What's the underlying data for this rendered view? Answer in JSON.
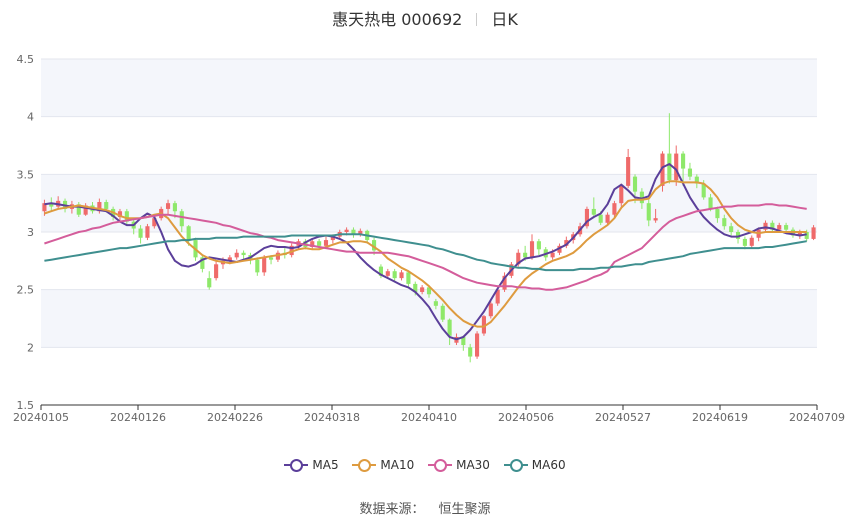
{
  "title": {
    "name": "惠天热电 000692",
    "period": "日K"
  },
  "source": {
    "label": "数据来源：",
    "value": "恒生聚源"
  },
  "chart_data": {
    "type": "candlestick",
    "ylim": [
      1.5,
      4.5
    ],
    "yticks": [
      "1.5",
      "2",
      "2.5",
      "3",
      "3.5",
      "4",
      "4.5"
    ],
    "xticks": [
      "20240105",
      "20240126",
      "20240226",
      "20240318",
      "20240410",
      "20240506",
      "20240527",
      "20240619",
      "20240709"
    ],
    "up_color": "#ef6a6a",
    "down_color": "#8ee86a",
    "ohlc": [
      [
        3.18,
        3.25,
        3.28,
        3.14
      ],
      [
        3.25,
        3.22,
        3.3,
        3.18
      ],
      [
        3.22,
        3.27,
        3.31,
        3.2
      ],
      [
        3.27,
        3.2,
        3.29,
        3.17
      ],
      [
        3.2,
        3.24,
        3.27,
        3.16
      ],
      [
        3.24,
        3.15,
        3.26,
        3.13
      ],
      [
        3.15,
        3.23,
        3.25,
        3.14
      ],
      [
        3.23,
        3.18,
        3.26,
        3.16
      ],
      [
        3.18,
        3.26,
        3.29,
        3.16
      ],
      [
        3.26,
        3.2,
        3.28,
        3.17
      ],
      [
        3.2,
        3.13,
        3.22,
        3.1
      ],
      [
        3.13,
        3.18,
        3.2,
        3.1
      ],
      [
        3.18,
        3.09,
        3.2,
        3.06
      ],
      [
        3.09,
        3.03,
        3.12,
        2.98
      ],
      [
        3.03,
        2.95,
        3.06,
        2.9
      ],
      [
        2.95,
        3.05,
        3.07,
        2.93
      ],
      [
        3.05,
        3.12,
        3.14,
        3.03
      ],
      [
        3.12,
        3.2,
        3.22,
        3.1
      ],
      [
        3.2,
        3.25,
        3.28,
        3.15
      ],
      [
        3.25,
        3.18,
        3.27,
        3.12
      ],
      [
        3.18,
        3.05,
        3.2,
        3.0
      ],
      [
        3.05,
        2.93,
        3.06,
        2.88
      ],
      [
        2.93,
        2.78,
        2.95,
        2.75
      ],
      [
        2.78,
        2.68,
        2.8,
        2.65
      ],
      [
        2.6,
        2.52,
        2.66,
        2.5
      ],
      [
        2.6,
        2.72,
        2.75,
        2.58
      ],
      [
        2.72,
        2.75,
        2.78,
        2.68
      ],
      [
        2.75,
        2.78,
        2.8,
        2.72
      ],
      [
        2.78,
        2.82,
        2.85,
        2.76
      ],
      [
        2.82,
        2.8,
        2.84,
        2.76
      ],
      [
        2.8,
        2.76,
        2.82,
        2.72
      ],
      [
        2.76,
        2.65,
        2.78,
        2.62
      ],
      [
        2.65,
        2.78,
        2.8,
        2.62
      ],
      [
        2.78,
        2.76,
        2.8,
        2.72
      ],
      [
        2.76,
        2.82,
        2.84,
        2.74
      ],
      [
        2.82,
        2.8,
        2.86,
        2.77
      ],
      [
        2.8,
        2.88,
        2.9,
        2.78
      ],
      [
        2.88,
        2.92,
        2.94,
        2.85
      ],
      [
        2.92,
        2.87,
        2.94,
        2.85
      ],
      [
        2.87,
        2.92,
        2.94,
        2.85
      ],
      [
        2.92,
        2.88,
        2.94,
        2.85
      ],
      [
        2.88,
        2.93,
        2.96,
        2.86
      ],
      [
        2.93,
        2.96,
        2.98,
        2.9
      ],
      [
        2.96,
        3.0,
        3.02,
        2.94
      ],
      [
        3.0,
        3.02,
        3.04,
        2.97
      ],
      [
        3.02,
        2.98,
        3.04,
        2.95
      ],
      [
        2.98,
        3.01,
        3.03,
        2.96
      ],
      [
        3.01,
        2.93,
        3.02,
        2.9
      ],
      [
        2.93,
        2.84,
        2.95,
        2.8
      ],
      [
        2.7,
        2.62,
        2.72,
        2.6
      ],
      [
        2.62,
        2.66,
        2.68,
        2.6
      ],
      [
        2.66,
        2.6,
        2.68,
        2.57
      ],
      [
        2.6,
        2.65,
        2.67,
        2.58
      ],
      [
        2.65,
        2.55,
        2.66,
        2.52
      ],
      [
        2.55,
        2.48,
        2.57,
        2.45
      ],
      [
        2.48,
        2.52,
        2.54,
        2.46
      ],
      [
        2.52,
        2.46,
        2.54,
        2.43
      ],
      [
        2.4,
        2.36,
        2.42,
        2.33
      ],
      [
        2.36,
        2.24,
        2.38,
        2.22
      ],
      [
        2.24,
        2.1,
        2.25,
        2.02
      ],
      [
        2.04,
        2.09,
        2.12,
        2.02
      ],
      [
        2.09,
        2.02,
        2.1,
        1.97
      ],
      [
        2.0,
        1.92,
        2.03,
        1.87
      ],
      [
        1.92,
        2.12,
        2.14,
        1.9
      ],
      [
        2.12,
        2.27,
        2.28,
        2.1
      ],
      [
        2.27,
        2.38,
        2.4,
        2.25
      ],
      [
        2.38,
        2.5,
        2.52,
        2.36
      ],
      [
        2.5,
        2.62,
        2.65,
        2.48
      ],
      [
        2.62,
        2.72,
        2.74,
        2.6
      ],
      [
        2.72,
        2.82,
        2.85,
        2.7
      ],
      [
        2.82,
        2.78,
        2.88,
        2.75
      ],
      [
        2.78,
        2.92,
        2.98,
        2.76
      ],
      [
        2.92,
        2.85,
        2.94,
        2.8
      ],
      [
        2.85,
        2.78,
        2.87,
        2.75
      ],
      [
        2.78,
        2.82,
        2.85,
        2.76
      ],
      [
        2.82,
        2.88,
        2.9,
        2.8
      ],
      [
        2.88,
        2.93,
        2.96,
        2.86
      ],
      [
        2.93,
        2.98,
        3.0,
        2.9
      ],
      [
        2.98,
        3.05,
        3.08,
        2.96
      ],
      [
        3.05,
        3.2,
        3.22,
        3.03
      ],
      [
        3.2,
        3.15,
        3.3,
        3.12
      ],
      [
        3.15,
        3.08,
        3.18,
        3.06
      ],
      [
        3.08,
        3.15,
        3.17,
        3.06
      ],
      [
        3.15,
        3.25,
        3.27,
        3.12
      ],
      [
        3.25,
        3.4,
        3.42,
        3.22
      ],
      [
        3.4,
        3.65,
        3.72,
        3.38
      ],
      [
        3.48,
        3.35,
        3.5,
        3.25
      ],
      [
        3.35,
        3.25,
        3.38,
        3.2
      ],
      [
        3.25,
        3.1,
        3.28,
        3.05
      ],
      [
        3.1,
        3.12,
        3.2,
        3.08
      ],
      [
        3.4,
        3.68,
        3.7,
        3.35
      ],
      [
        3.68,
        3.45,
        4.03,
        3.42
      ],
      [
        3.45,
        3.68,
        3.75,
        3.4
      ],
      [
        3.68,
        3.55,
        3.7,
        3.4
      ],
      [
        3.55,
        3.48,
        3.6,
        3.45
      ],
      [
        3.48,
        3.42,
        3.5,
        3.38
      ],
      [
        3.42,
        3.3,
        3.45,
        3.28
      ],
      [
        3.3,
        3.2,
        3.33,
        3.18
      ],
      [
        3.2,
        3.12,
        3.22,
        3.08
      ],
      [
        3.12,
        3.05,
        3.15,
        3.02
      ],
      [
        3.05,
        3.0,
        3.08,
        2.97
      ],
      [
        3.0,
        2.94,
        3.02,
        2.9
      ],
      [
        2.94,
        2.88,
        2.96,
        2.85
      ],
      [
        2.88,
        2.95,
        2.97,
        2.86
      ],
      [
        2.95,
        3.02,
        3.04,
        2.92
      ],
      [
        3.02,
        3.08,
        3.1,
        3.0
      ],
      [
        3.08,
        3.02,
        3.1,
        3.0
      ],
      [
        3.02,
        3.06,
        3.08,
        3.0
      ],
      [
        3.06,
        3.02,
        3.08,
        2.99
      ],
      [
        3.02,
        2.97,
        3.04,
        2.95
      ],
      [
        2.97,
        3.0,
        3.02,
        2.94
      ],
      [
        3.0,
        2.94,
        3.02,
        2.92
      ],
      [
        2.94,
        3.04,
        3.06,
        2.93
      ]
    ],
    "series": [
      {
        "name": "MA5",
        "color": "#5b3f9a",
        "values": [
          3.24,
          3.25,
          3.24,
          3.23,
          3.22,
          3.22,
          3.21,
          3.2,
          3.19,
          3.18,
          3.14,
          3.09,
          3.06,
          3.06,
          3.12,
          3.16,
          3.13,
          3.0,
          2.85,
          2.75,
          2.71,
          2.7,
          2.72,
          2.76,
          2.78,
          2.77,
          2.76,
          2.75,
          2.74,
          2.76,
          2.78,
          2.82,
          2.86,
          2.88,
          2.87,
          2.87,
          2.86,
          2.87,
          2.91,
          2.94,
          2.96,
          2.97,
          2.96,
          2.94,
          2.91,
          2.85,
          2.78,
          2.72,
          2.67,
          2.63,
          2.6,
          2.57,
          2.54,
          2.52,
          2.48,
          2.42,
          2.35,
          2.25,
          2.16,
          2.09,
          2.07,
          2.09,
          2.15,
          2.23,
          2.31,
          2.41,
          2.51,
          2.6,
          2.67,
          2.73,
          2.77,
          2.78,
          2.79,
          2.81,
          2.83,
          2.86,
          2.89,
          2.95,
          3.02,
          3.09,
          3.13,
          3.16,
          3.24,
          3.37,
          3.41,
          3.36,
          3.3,
          3.29,
          3.31,
          3.46,
          3.56,
          3.59,
          3.54,
          3.42,
          3.3,
          3.21,
          3.13,
          3.07,
          3.02,
          2.98,
          2.96,
          2.96,
          2.98,
          3.0,
          3.03,
          3.04,
          3.03,
          3.01,
          2.99,
          2.98,
          2.97,
          2.98
        ]
      },
      {
        "name": "MA10",
        "color": "#de9b3f",
        "values": [
          3.16,
          3.18,
          3.2,
          3.21,
          3.22,
          3.23,
          3.22,
          3.21,
          3.2,
          3.19,
          3.17,
          3.14,
          3.12,
          3.12,
          3.12,
          3.13,
          3.15,
          3.16,
          3.12,
          3.04,
          2.96,
          2.9,
          2.85,
          2.8,
          2.77,
          2.75,
          2.74,
          2.73,
          2.74,
          2.75,
          2.76,
          2.77,
          2.78,
          2.79,
          2.8,
          2.81,
          2.83,
          2.85,
          2.86,
          2.85,
          2.85,
          2.87,
          2.89,
          2.91,
          2.91,
          2.92,
          2.92,
          2.91,
          2.87,
          2.83,
          2.77,
          2.73,
          2.69,
          2.66,
          2.62,
          2.58,
          2.53,
          2.47,
          2.41,
          2.34,
          2.28,
          2.23,
          2.2,
          2.18,
          2.18,
          2.22,
          2.29,
          2.36,
          2.44,
          2.52,
          2.59,
          2.64,
          2.68,
          2.72,
          2.75,
          2.77,
          2.79,
          2.82,
          2.87,
          2.93,
          2.98,
          3.02,
          3.06,
          3.12,
          3.21,
          3.27,
          3.28,
          3.28,
          3.29,
          3.37,
          3.42,
          3.44,
          3.44,
          3.43,
          3.43,
          3.43,
          3.42,
          3.37,
          3.3,
          3.2,
          3.12,
          3.06,
          3.02,
          3.0,
          2.99,
          3.0,
          3.0,
          3.0,
          3.0,
          3.0,
          3.0,
          3.0
        ]
      },
      {
        "name": "MA30",
        "color": "#d45d9b",
        "values": [
          2.9,
          2.92,
          2.94,
          2.96,
          2.98,
          3.0,
          3.01,
          3.03,
          3.04,
          3.06,
          3.08,
          3.09,
          3.1,
          3.11,
          3.12,
          3.13,
          3.14,
          3.15,
          3.15,
          3.14,
          3.13,
          3.12,
          3.11,
          3.1,
          3.09,
          3.08,
          3.06,
          3.05,
          3.03,
          3.01,
          2.99,
          2.98,
          2.96,
          2.95,
          2.93,
          2.92,
          2.91,
          2.9,
          2.89,
          2.88,
          2.87,
          2.86,
          2.85,
          2.84,
          2.83,
          2.83,
          2.82,
          2.82,
          2.82,
          2.82,
          2.82,
          2.81,
          2.8,
          2.79,
          2.77,
          2.75,
          2.73,
          2.71,
          2.69,
          2.66,
          2.63,
          2.6,
          2.58,
          2.56,
          2.55,
          2.54,
          2.53,
          2.53,
          2.53,
          2.52,
          2.52,
          2.51,
          2.51,
          2.5,
          2.5,
          2.51,
          2.52,
          2.54,
          2.56,
          2.58,
          2.61,
          2.63,
          2.66,
          2.74,
          2.77,
          2.8,
          2.83,
          2.86,
          2.92,
          2.98,
          3.04,
          3.09,
          3.12,
          3.14,
          3.16,
          3.18,
          3.19,
          3.2,
          3.21,
          3.22,
          3.22,
          3.23,
          3.23,
          3.23,
          3.23,
          3.24,
          3.24,
          3.23,
          3.23,
          3.22,
          3.21,
          3.2
        ]
      },
      {
        "name": "MA60",
        "color": "#3f8f8f",
        "values": [
          2.75,
          2.76,
          2.77,
          2.78,
          2.79,
          2.8,
          2.81,
          2.82,
          2.83,
          2.84,
          2.85,
          2.86,
          2.86,
          2.87,
          2.88,
          2.89,
          2.9,
          2.91,
          2.92,
          2.92,
          2.93,
          2.93,
          2.94,
          2.94,
          2.94,
          2.95,
          2.95,
          2.95,
          2.95,
          2.96,
          2.96,
          2.96,
          2.96,
          2.96,
          2.96,
          2.96,
          2.97,
          2.97,
          2.97,
          2.97,
          2.97,
          2.97,
          2.97,
          2.98,
          2.98,
          2.98,
          2.98,
          2.97,
          2.96,
          2.95,
          2.94,
          2.93,
          2.92,
          2.91,
          2.9,
          2.89,
          2.88,
          2.86,
          2.85,
          2.83,
          2.81,
          2.8,
          2.78,
          2.76,
          2.75,
          2.73,
          2.72,
          2.71,
          2.7,
          2.69,
          2.69,
          2.68,
          2.68,
          2.67,
          2.67,
          2.67,
          2.67,
          2.67,
          2.68,
          2.68,
          2.68,
          2.69,
          2.69,
          2.7,
          2.7,
          2.71,
          2.72,
          2.72,
          2.74,
          2.75,
          2.76,
          2.77,
          2.78,
          2.79,
          2.81,
          2.82,
          2.83,
          2.84,
          2.85,
          2.86,
          2.86,
          2.86,
          2.86,
          2.86,
          2.86,
          2.87,
          2.87,
          2.88,
          2.89,
          2.9,
          2.91,
          2.92
        ]
      }
    ]
  }
}
